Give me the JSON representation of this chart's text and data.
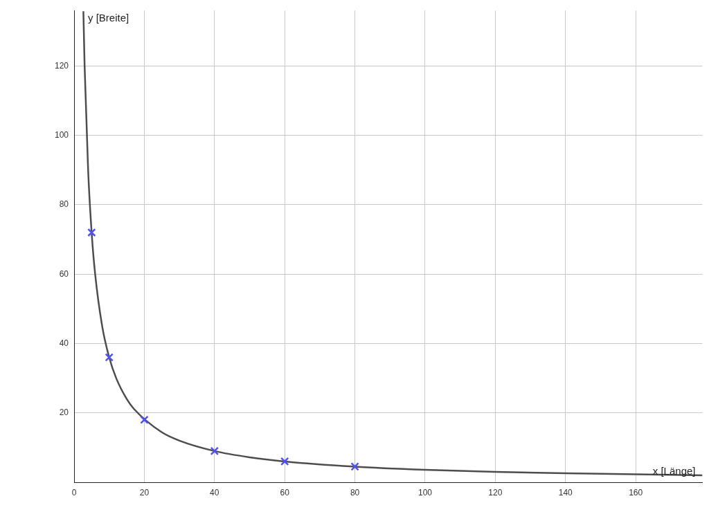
{
  "chart_data": {
    "type": "scatter",
    "xlabel": "x [Länge]",
    "ylabel": "y [Breite]",
    "xlim": [
      0,
      179
    ],
    "ylim": [
      0,
      136
    ],
    "xticks": [
      0,
      20,
      40,
      60,
      80,
      100,
      120,
      140,
      160
    ],
    "yticks": [
      20,
      40,
      60,
      80,
      100,
      120
    ],
    "grid": true,
    "series": [
      {
        "type": "line",
        "color": "#4d4d4d",
        "marker": "none",
        "line_style": "solid",
        "x": [
          2.65,
          3,
          4,
          5,
          6,
          8,
          10,
          12,
          15,
          17,
          25,
          30,
          40,
          50,
          60,
          80,
          100,
          120,
          140,
          160,
          179
        ],
        "values": [
          135.8,
          120,
          90,
          72,
          60,
          45,
          36,
          30,
          24,
          21.2,
          14.4,
          12,
          9,
          7.2,
          6,
          4.5,
          3.6,
          3,
          2.6,
          2.3,
          2.0
        ]
      },
      {
        "type": "scatter",
        "color": "#5050f0",
        "marker": "cross",
        "x": [
          5,
          10,
          20,
          40,
          60,
          80
        ],
        "values": [
          72,
          36,
          18,
          9,
          6,
          4.5
        ]
      }
    ]
  }
}
